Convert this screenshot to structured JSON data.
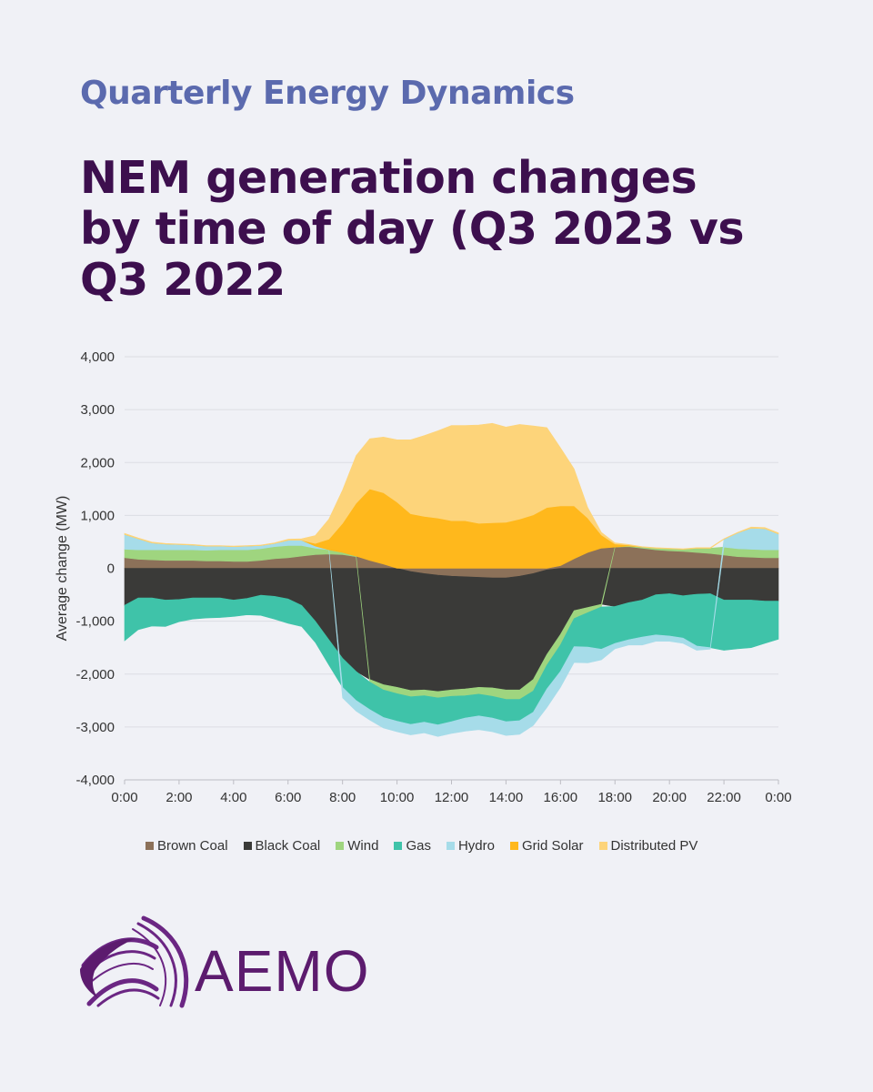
{
  "header": {
    "kicker": "Quarterly Energy Dynamics",
    "headline": "NEM generation changes by time of day (Q3 2023 vs Q3 2022"
  },
  "brand": {
    "logo_text": "AEMO",
    "color": "#5c1b6e"
  },
  "chart_data": {
    "type": "area",
    "stacked": true,
    "title": "",
    "xlabel": "",
    "ylabel": "Average change (MW)",
    "ylim": [
      -4000,
      4000
    ],
    "y_ticks": [
      4000,
      3000,
      2000,
      1000,
      0,
      -1000,
      -2000,
      -3000,
      -4000
    ],
    "y_tick_labels": [
      "4,000",
      "3,000",
      "2,000",
      "1,000",
      "0",
      "-1,000",
      "-2,000",
      "-3,000",
      "-4,000"
    ],
    "x_tick_labels": [
      "0:00",
      "2:00",
      "4:00",
      "6:00",
      "8:00",
      "10:00",
      "12:00",
      "14:00",
      "16:00",
      "18:00",
      "20:00",
      "22:00",
      "0:00"
    ],
    "x_hours": [
      0,
      0.5,
      1,
      1.5,
      2,
      2.5,
      3,
      3.5,
      4,
      4.5,
      5,
      5.5,
      6,
      6.5,
      7,
      7.5,
      8,
      8.5,
      9,
      9.5,
      10,
      10.5,
      11,
      11.5,
      12,
      12.5,
      13,
      13.5,
      14,
      14.5,
      15,
      15.5,
      16,
      16.5,
      17,
      17.5,
      18,
      18.5,
      19,
      19.5,
      20,
      20.5,
      21,
      21.5,
      22,
      22.5,
      23,
      23.5,
      24
    ],
    "grid": true,
    "legend_position": "bottom",
    "series": [
      {
        "name": "Brown Coal",
        "color": "#8c7159",
        "values": [
          200,
          170,
          160,
          150,
          150,
          150,
          140,
          140,
          130,
          130,
          150,
          180,
          200,
          230,
          260,
          270,
          260,
          220,
          150,
          80,
          0,
          -60,
          -100,
          -130,
          -150,
          -160,
          -170,
          -180,
          -180,
          -150,
          -100,
          -30,
          50,
          180,
          300,
          380,
          400,
          410,
          380,
          350,
          330,
          320,
          300,
          280,
          250,
          220,
          210,
          200,
          200
        ]
      },
      {
        "name": "Black Coal",
        "color": "#3a3a38",
        "values": [
          -700,
          -560,
          -560,
          -600,
          -590,
          -560,
          -560,
          -560,
          -600,
          -570,
          -510,
          -530,
          -580,
          -700,
          -1000,
          -1350,
          -1700,
          -1950,
          -2100,
          -2200,
          -2250,
          -2250,
          -2200,
          -2200,
          -2150,
          -2120,
          -2080,
          -2080,
          -2120,
          -2150,
          -2000,
          -1600,
          -1250,
          -800,
          -740,
          -680,
          -720,
          -650,
          -600,
          -500,
          -480,
          -520,
          -490,
          -480,
          -600,
          -600,
          -600,
          -620,
          -620
        ]
      },
      {
        "name": "Wind",
        "color": "#9fd57f",
        "values": [
          160,
          180,
          190,
          200,
          200,
          200,
          200,
          210,
          220,
          220,
          220,
          230,
          230,
          200,
          120,
          80,
          40,
          10,
          -50,
          -100,
          -120,
          -120,
          -110,
          -120,
          -120,
          -130,
          -130,
          -160,
          -180,
          -180,
          -220,
          -200,
          -200,
          -150,
          -100,
          -50,
          0,
          10,
          20,
          30,
          40,
          40,
          80,
          100,
          150,
          150,
          150,
          150,
          150
        ]
      },
      {
        "name": "Gas",
        "color": "#3fc3a9",
        "values": [
          -670,
          -600,
          -530,
          -500,
          -420,
          -400,
          -380,
          -370,
          -310,
          -310,
          -380,
          -430,
          -460,
          -400,
          -400,
          -480,
          -550,
          -550,
          -520,
          -520,
          -520,
          -520,
          -500,
          -510,
          -480,
          -420,
          -410,
          -410,
          -420,
          -400,
          -400,
          -450,
          -500,
          -530,
          -650,
          -800,
          -700,
          -700,
          -700,
          -760,
          -800,
          -800,
          -980,
          -1020,
          -950,
          -920,
          -900,
          -800,
          -720
        ]
      },
      {
        "name": "Hydro",
        "color": "#a6dce9",
        "values": [
          280,
          210,
          130,
          110,
          100,
          90,
          80,
          70,
          60,
          70,
          60,
          60,
          100,
          100,
          40,
          0,
          -200,
          -200,
          -200,
          -200,
          -200,
          -200,
          -200,
          -220,
          -220,
          -250,
          -260,
          -260,
          -260,
          -260,
          -250,
          -350,
          -300,
          -300,
          -300,
          -200,
          -100,
          -100,
          -150,
          -120,
          -100,
          -100,
          -80,
          -30,
          150,
          300,
          400,
          400,
          300
        ]
      },
      {
        "name": "Grid Solar",
        "color": "#ffb81c",
        "values": [
          0,
          0,
          0,
          0,
          0,
          0,
          0,
          0,
          0,
          0,
          0,
          0,
          0,
          0,
          50,
          200,
          550,
          1000,
          1350,
          1350,
          1250,
          1030,
          980,
          950,
          900,
          900,
          850,
          860,
          870,
          930,
          1010,
          1150,
          1130,
          1000,
          650,
          250,
          60,
          20,
          0,
          0,
          0,
          0,
          0,
          0,
          0,
          0,
          0,
          0,
          0
        ]
      },
      {
        "name": "Distributed PV",
        "color": "#fdd47a",
        "values": [
          20,
          15,
          15,
          10,
          10,
          10,
          10,
          10,
          10,
          10,
          10,
          10,
          20,
          30,
          150,
          380,
          630,
          900,
          950,
          1050,
          1180,
          1400,
          1530,
          1650,
          1800,
          1800,
          1860,
          1880,
          1800,
          1790,
          1680,
          1510,
          1100,
          700,
          200,
          50,
          20,
          10,
          10,
          10,
          10,
          10,
          10,
          10,
          10,
          10,
          20,
          20,
          20
        ]
      }
    ]
  }
}
